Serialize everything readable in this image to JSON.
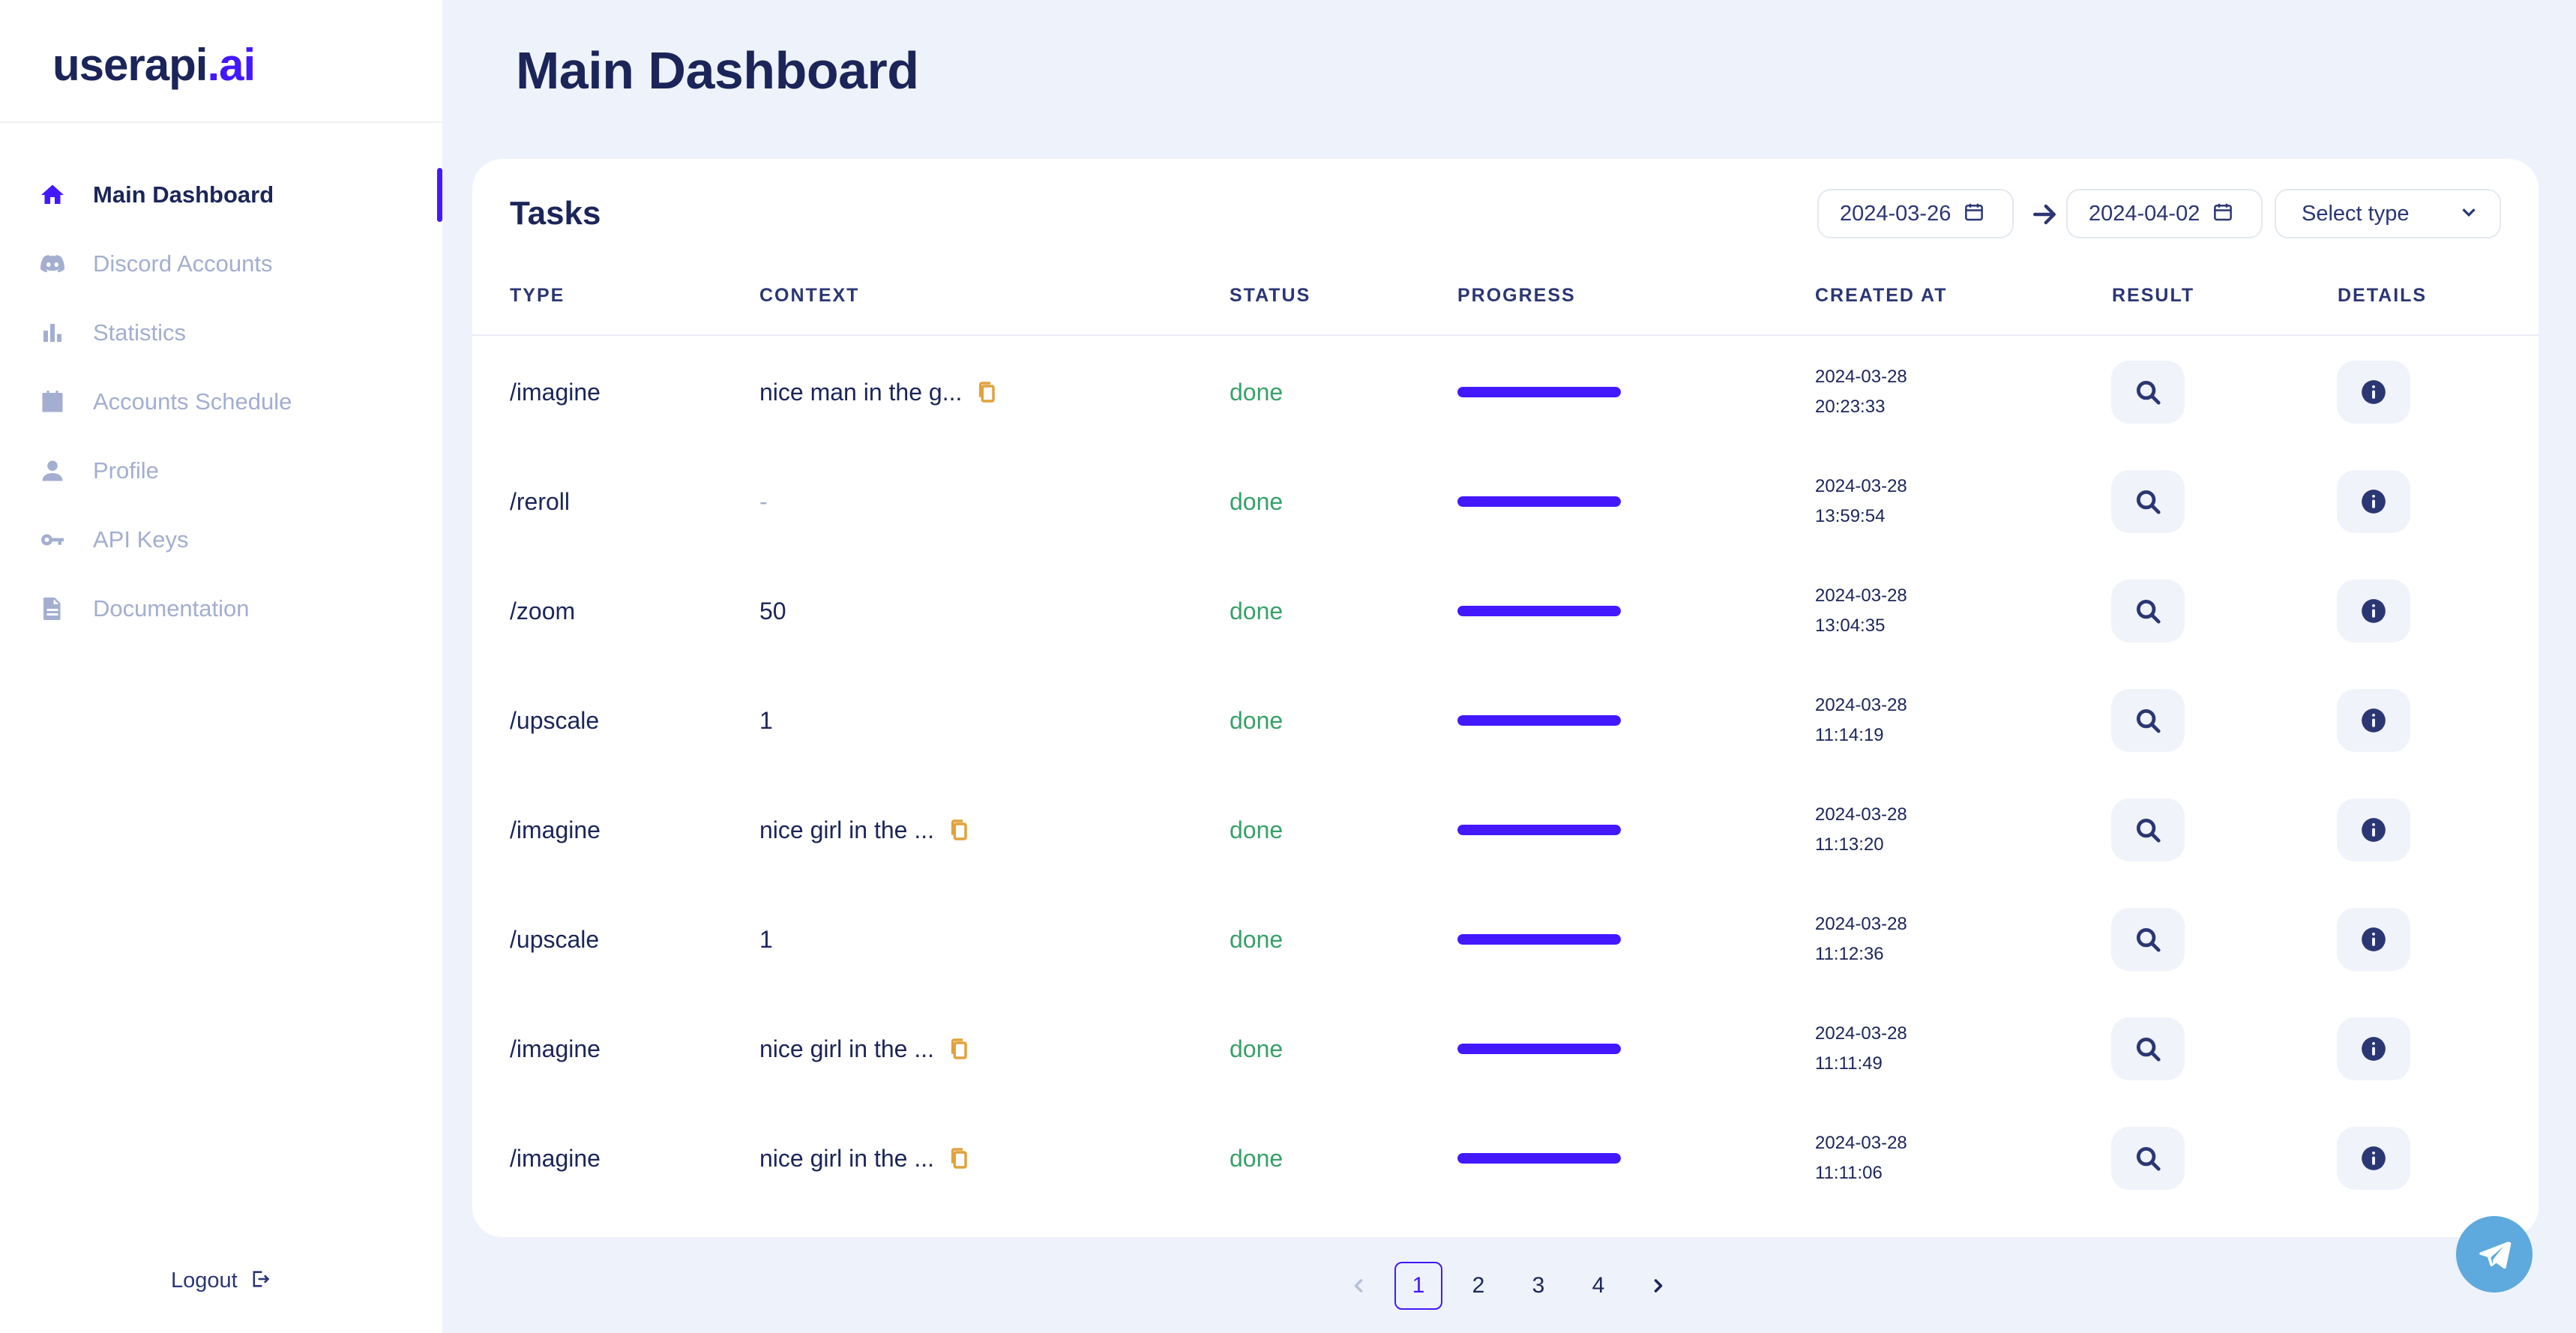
{
  "brand": {
    "name": "userapi",
    "suffix": ".ai"
  },
  "sidebar": {
    "items": [
      {
        "label": "Main Dashboard",
        "icon": "home-icon",
        "active": true
      },
      {
        "label": "Discord Accounts",
        "icon": "discord-icon",
        "active": false
      },
      {
        "label": "Statistics",
        "icon": "bar-chart-icon",
        "active": false
      },
      {
        "label": "Accounts Schedule",
        "icon": "calendar-icon",
        "active": false
      },
      {
        "label": "Profile",
        "icon": "person-icon",
        "active": false
      },
      {
        "label": "API Keys",
        "icon": "key-icon",
        "active": false
      },
      {
        "label": "Documentation",
        "icon": "document-icon",
        "active": false
      }
    ],
    "logout_label": "Logout"
  },
  "header": {
    "title": "Main Dashboard"
  },
  "tasks": {
    "title": "Tasks",
    "filters": {
      "date_from": "2024-03-26",
      "date_to": "2024-04-02",
      "type_placeholder": "Select type"
    },
    "columns": {
      "type": "TYPE",
      "context": "CONTEXT",
      "status": "STATUS",
      "progress": "PROGRESS",
      "created_at": "CREATED AT",
      "result": "RESULT",
      "details": "DETAILS"
    },
    "rows": [
      {
        "type": "/imagine",
        "context": "nice man in the g...",
        "copyable": true,
        "status": "done",
        "progress": 1.0,
        "created_date": "2024-03-28",
        "created_time": "20:23:33"
      },
      {
        "type": "/reroll",
        "context": "-",
        "copyable": false,
        "status": "done",
        "progress": 1.0,
        "created_date": "2024-03-28",
        "created_time": "13:59:54"
      },
      {
        "type": "/zoom",
        "context": "50",
        "copyable": false,
        "status": "done",
        "progress": 1.0,
        "created_date": "2024-03-28",
        "created_time": "13:04:35"
      },
      {
        "type": "/upscale",
        "context": "1",
        "copyable": false,
        "status": "done",
        "progress": 1.0,
        "created_date": "2024-03-28",
        "created_time": "11:14:19"
      },
      {
        "type": "/imagine",
        "context": "nice girl in the ...",
        "copyable": true,
        "status": "done",
        "progress": 1.0,
        "created_date": "2024-03-28",
        "created_time": "11:13:20"
      },
      {
        "type": "/upscale",
        "context": "1",
        "copyable": false,
        "status": "done",
        "progress": 1.0,
        "created_date": "2024-03-28",
        "created_time": "11:12:36"
      },
      {
        "type": "/imagine",
        "context": "nice girl in the ...",
        "copyable": true,
        "status": "done",
        "progress": 1.0,
        "created_date": "2024-03-28",
        "created_time": "11:11:49"
      },
      {
        "type": "/imagine",
        "context": "nice girl in the ...",
        "copyable": true,
        "status": "done",
        "progress": 1.0,
        "created_date": "2024-03-28",
        "created_time": "11:11:06"
      }
    ]
  },
  "pagination": {
    "pages": [
      "1",
      "2",
      "3",
      "4"
    ],
    "current": "1"
  },
  "colors": {
    "accent": "#4318ff",
    "status_done": "#38a169",
    "copy_icon": "#e1a23b",
    "telegram": "#5ea9dd"
  },
  "fab": {
    "icon": "telegram-icon"
  }
}
